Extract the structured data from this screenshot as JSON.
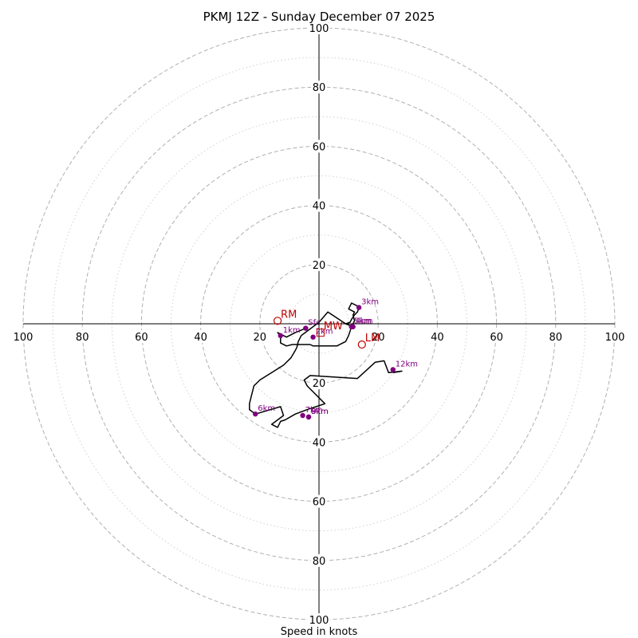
{
  "chart_data": {
    "type": "hodograph",
    "title": "PKMJ 12Z - Sunday December 07 2025",
    "xlabel": "Speed in knots",
    "axis_max": 100,
    "major_rings": [
      20,
      40,
      60,
      80,
      100
    ],
    "minor_rings": [
      10,
      30,
      50,
      70,
      90
    ],
    "tick_labels": [
      "20",
      "40",
      "60",
      "80",
      "100"
    ],
    "colors": {
      "trace": "#000000",
      "height_marker": "#800080",
      "motion_marker": "#c00000",
      "ring_major": "#b0b0b0",
      "ring_minor": "#d0d0d0"
    },
    "trace": [
      [
        -4.5,
        -1.5
      ],
      [
        -8,
        -3
      ],
      [
        -11,
        -4.5
      ],
      [
        -14,
        -3
      ],
      [
        -13,
        -4
      ],
      [
        -13,
        -6.5
      ],
      [
        -11,
        -7.5
      ],
      [
        -9,
        -7
      ],
      [
        -3,
        -7
      ],
      [
        -2,
        -7.5
      ],
      [
        0,
        -7.5
      ],
      [
        6,
        -7.5
      ],
      [
        9,
        -6
      ],
      [
        10,
        -4
      ],
      [
        11,
        -1
      ],
      [
        12,
        1
      ],
      [
        11.5,
        3
      ],
      [
        12,
        4
      ],
      [
        10,
        5
      ],
      [
        11,
        7
      ],
      [
        13,
        6
      ],
      [
        13.5,
        5.5
      ],
      [
        13,
        4
      ],
      [
        12,
        3
      ],
      [
        11,
        1.5
      ],
      [
        10.5,
        0.5
      ],
      [
        9,
        0
      ],
      [
        11.5,
        -1
      ],
      [
        9,
        0
      ],
      [
        6,
        2
      ],
      [
        3,
        4
      ],
      [
        0,
        0.5
      ],
      [
        -6,
        -4
      ],
      [
        -7,
        -6
      ],
      [
        -7.5,
        -8
      ],
      [
        -8,
        -9
      ],
      [
        -9.5,
        -11.5
      ],
      [
        -12,
        -14
      ],
      [
        -16,
        -16.5
      ],
      [
        -20,
        -19
      ],
      [
        -22,
        -21
      ],
      [
        -22.5,
        -23
      ],
      [
        -23.5,
        -27
      ],
      [
        -23.5,
        -29
      ],
      [
        -21.5,
        -30.5
      ],
      [
        -13,
        -28
      ],
      [
        -12,
        -31
      ],
      [
        -16,
        -34
      ],
      [
        -14,
        -35
      ],
      [
        -13,
        -33
      ],
      [
        -11.5,
        -32.5
      ],
      [
        -8,
        -30.5
      ],
      [
        -4,
        -29
      ],
      [
        2,
        -27
      ],
      [
        -4,
        -21
      ],
      [
        -5,
        -19
      ],
      [
        -3,
        -17.5
      ],
      [
        13,
        -18.5
      ],
      [
        19,
        -13
      ],
      [
        22,
        -12.5
      ],
      [
        23.5,
        -16.5
      ],
      [
        28,
        -16
      ],
      [
        25,
        -16.5
      ]
    ],
    "height_markers": [
      {
        "label": "Sfc",
        "u": -4.5,
        "v": -1.5
      },
      {
        "label": "1km",
        "u": -13,
        "v": -4
      },
      {
        "label": "2km",
        "u": -2,
        "v": -4.5
      },
      {
        "label": "3km",
        "u": 13.5,
        "v": 5.5
      },
      {
        "label": "4km",
        "u": 11.5,
        "v": -1
      },
      {
        "label": "5km",
        "u": 11,
        "v": -1
      },
      {
        "label": "6km",
        "u": -21.5,
        "v": -30.5
      },
      {
        "label": "7km",
        "u": -5.5,
        "v": -31
      },
      {
        "label": "8km",
        "u": -3.5,
        "v": -31.5
      },
      {
        "label": "9km",
        "u": -3.5,
        "v": -31.5
      },
      {
        "label": "12km",
        "u": 25,
        "v": -15.5
      }
    ],
    "motion_markers": [
      {
        "label": "RM",
        "u": -14,
        "v": 1,
        "shape": "circle"
      },
      {
        "label": "LM",
        "u": 14.5,
        "v": -7,
        "shape": "circle"
      },
      {
        "label": "MW",
        "u": 0.5,
        "v": -3,
        "shape": "square"
      }
    ]
  }
}
